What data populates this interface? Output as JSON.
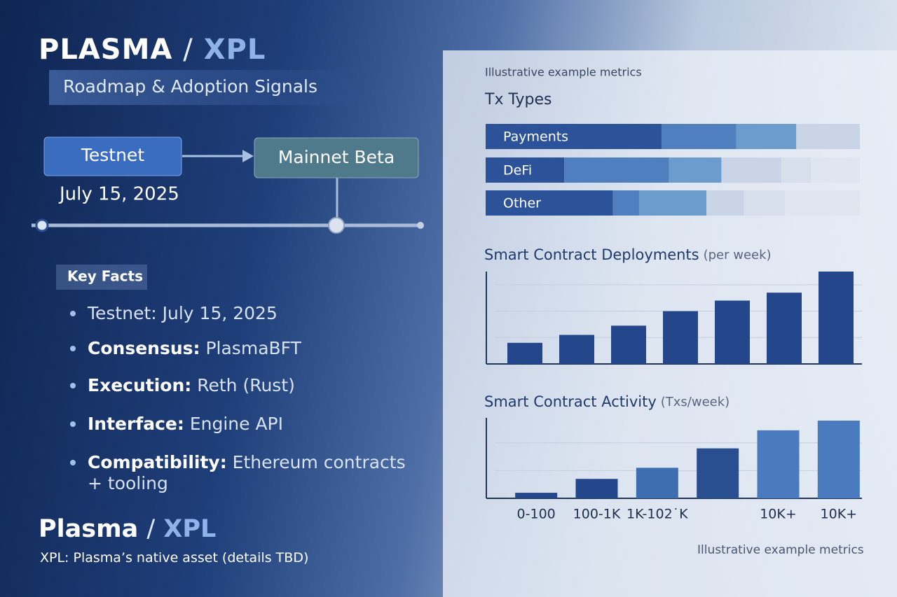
{
  "header": {
    "brand": "PLASMA",
    "slash": "/",
    "ticker": "XPL",
    "subtitle": "Roadmap & Adoption Signals"
  },
  "timeline": {
    "stages": [
      "Testnet",
      "Mainnet Beta"
    ],
    "date": "July 15, 2025"
  },
  "key_facts": {
    "title": "Key Facts",
    "items": [
      {
        "text": "Testnet: July 15, 2025"
      },
      {
        "label": "Consensus:",
        "text": "PlasmaBFT"
      },
      {
        "label": "Execution:",
        "text": "Reth (Rust)"
      },
      {
        "label": "Interface:",
        "text": "Engine API"
      },
      {
        "label": "Compatibility:",
        "text": "Ethereum contracts + tooling"
      }
    ]
  },
  "footer": {
    "brand": "Plasma",
    "slash": "/",
    "ticker": "XPL",
    "note_label": "XPL:",
    "note": "Plasma’s native asset (details TBD)",
    "caption": "Illustrative example metrics"
  },
  "chart_data": [
    {
      "type": "stacked_bar_h",
      "caption": "Illustrative example metrics",
      "title": "Tx Types",
      "categories": [
        "Payments",
        "DeFi",
        "Other"
      ],
      "xlim": [
        0,
        100
      ],
      "segments": [
        {
          "color": "#2c5399",
          "values": [
            47,
            21,
            34
          ]
        },
        {
          "color": "#4f7fbf",
          "values": [
            20,
            28,
            7
          ]
        },
        {
          "color": "#6c9ccb",
          "values": [
            16,
            14,
            18
          ]
        },
        {
          "color": "#c9d5e6",
          "values": [
            17,
            16,
            10
          ]
        },
        {
          "color": "#d6dfeb",
          "values": [
            null,
            8,
            11
          ]
        },
        {
          "color": "#dfe6ef",
          "values": [
            null,
            13,
            20
          ]
        }
      ]
    },
    {
      "type": "bar",
      "title": "Smart Contract Deployments",
      "title_unit": "(per week)",
      "values": [
        0.8,
        1.1,
        1.45,
        2.0,
        2.4,
        2.7,
        3.5
      ],
      "color": "#23478a",
      "ylim": [
        0,
        3.5
      ],
      "yticks": [
        1,
        2,
        3
      ],
      "grid": true
    },
    {
      "type": "bar",
      "title": "Smart Contract Activity",
      "title_unit": "(Txs/week)",
      "categories": [
        "0-100",
        "100-1K",
        "1K-102˙K",
        null,
        "10K+",
        "10K+"
      ],
      "values": [
        0.2,
        0.7,
        1.1,
        1.8,
        2.45,
        2.8
      ],
      "colors": [
        "#23478a",
        "#23478a",
        "#3f6eb0",
        "#2a4f91",
        "#4a7bbf",
        "#4a7bbf"
      ],
      "ylim": [
        0,
        2.9
      ],
      "yticks": [
        1,
        2
      ],
      "grid": true
    }
  ]
}
